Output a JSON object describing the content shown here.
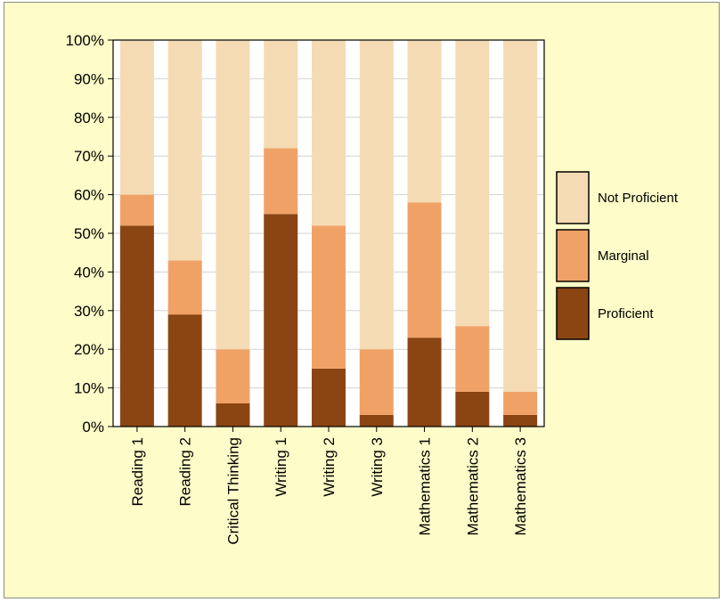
{
  "chart_data": {
    "type": "bar",
    "stacked": true,
    "categories": [
      "Reading 1",
      "Reading 2",
      "Critical Thinking",
      "Writing 1",
      "Writing 2",
      "Writing 3",
      "Mathematics 1",
      "Mathematics 2",
      "Mathematics 3"
    ],
    "series": [
      {
        "name": "Proficient",
        "color": "#8b4513",
        "values": [
          52,
          29,
          6,
          55,
          15,
          3,
          23,
          9,
          3
        ]
      },
      {
        "name": "Marginal",
        "color": "#f0a266",
        "values": [
          8,
          14,
          14,
          17,
          37,
          17,
          35,
          17,
          6
        ]
      },
      {
        "name": "Not Proficient",
        "color": "#f5dbb4",
        "values": [
          40,
          57,
          80,
          28,
          48,
          80,
          42,
          74,
          91
        ]
      }
    ],
    "y_ticks": [
      "0%",
      "10%",
      "20%",
      "30%",
      "40%",
      "50%",
      "60%",
      "70%",
      "80%",
      "90%",
      "100%"
    ],
    "ylim": [
      0,
      100
    ],
    "y_unit": "percent",
    "grid": true,
    "legend": {
      "position": "right",
      "entries": [
        "Not Proficient",
        "Marginal",
        "Proficient"
      ]
    },
    "title": "",
    "xlabel": "",
    "ylabel": ""
  }
}
